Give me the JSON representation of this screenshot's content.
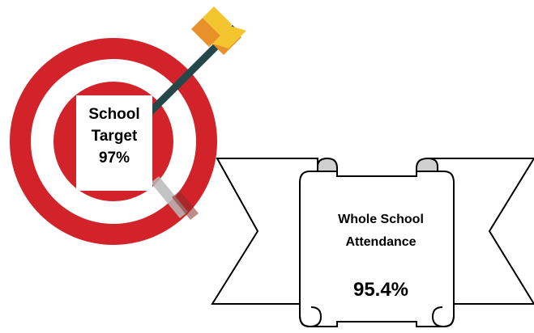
{
  "target": {
    "line1": "School",
    "line2": "Target",
    "value": "97%"
  },
  "attendance": {
    "line1": "Whole School",
    "line2": "Attendance",
    "value": "95.4%"
  },
  "colors": {
    "ring_red": "#d2232a",
    "arrow_shaft": "#24474a",
    "fletching_orange": "#e8912a",
    "fletching_yellow": "#f3c52e",
    "scroll_fill": "#ffffff",
    "scroll_curl": "#d0d0d0",
    "outline": "#000000"
  },
  "icons": [
    "dartboard-target-icon",
    "arrow-icon",
    "ribbon-scroll-banner"
  ]
}
